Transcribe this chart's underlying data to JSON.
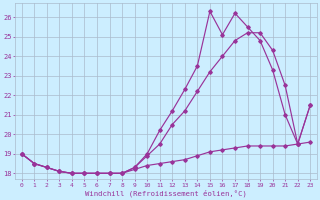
{
  "x": [
    0,
    1,
    2,
    3,
    4,
    5,
    6,
    7,
    8,
    9,
    10,
    11,
    12,
    13,
    14,
    15,
    16,
    17,
    18,
    19,
    20,
    21,
    22,
    23
  ],
  "line_top": [
    19.0,
    18.5,
    18.3,
    18.1,
    18.0,
    18.0,
    18.0,
    18.0,
    18.0,
    18.3,
    19.0,
    20.2,
    21.2,
    22.3,
    23.5,
    26.3,
    25.1,
    26.2,
    25.5,
    24.8,
    23.3,
    21.0,
    19.5,
    21.5
  ],
  "line_mid": [
    19.0,
    18.5,
    18.3,
    18.1,
    18.0,
    18.0,
    18.0,
    18.0,
    18.0,
    18.3,
    18.9,
    19.5,
    20.5,
    21.2,
    22.2,
    23.2,
    24.0,
    24.8,
    25.2,
    25.2,
    24.3,
    22.5,
    19.5,
    21.5
  ],
  "line_bot": [
    19.0,
    18.5,
    18.3,
    18.1,
    18.0,
    18.0,
    18.0,
    18.0,
    18.0,
    18.2,
    18.4,
    18.5,
    18.6,
    18.7,
    18.9,
    19.1,
    19.2,
    19.3,
    19.4,
    19.4,
    19.4,
    19.4,
    19.5,
    19.6
  ],
  "line_color": "#993399",
  "bg_color": "#cceeff",
  "grid_color": "#aabbcc",
  "ylabel_values": [
    18,
    19,
    20,
    21,
    22,
    23,
    24,
    25,
    26
  ],
  "ylim": [
    17.7,
    26.7
  ],
  "xlabel": "Windchill (Refroidissement éolien,°C)",
  "xlim": [
    -0.5,
    23.5
  ]
}
